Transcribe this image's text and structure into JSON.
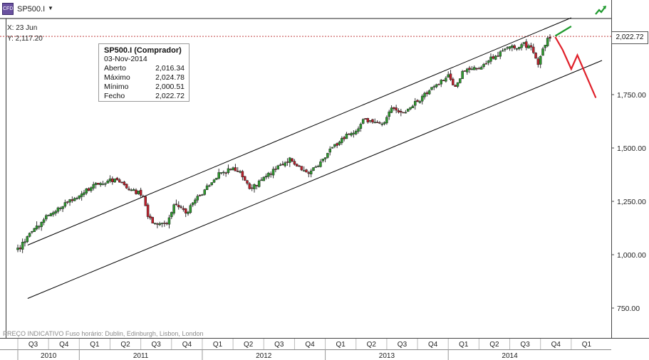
{
  "toolbar": {
    "symbol": "SP500.I",
    "symbol_icon": "cfd-icon"
  },
  "crosshair": {
    "x_label": "X: 23 Jun",
    "y_label": "Y: 2,117.20"
  },
  "tooltip": {
    "title": "SP500.I (Comprador)",
    "date": "03-Nov-2014",
    "rows": [
      {
        "label": "Aberto",
        "value": "2,016.34"
      },
      {
        "label": "Máximo",
        "value": "2,024.78"
      },
      {
        "label": "Mínimo",
        "value": "2,000.51"
      },
      {
        "label": "Fecho",
        "value": "2,022.72"
      }
    ]
  },
  "last_price": "2,022.72",
  "footer_note": "PREÇO INDICATIVO   Fuso horário: Dublin, Edinburgh, Lisbon, London",
  "colors": {
    "up": "#2e9b2e",
    "down": "#c0202c",
    "channel": "#000000",
    "projection_down": "#e0202a",
    "projection_up": "#1f9a2e",
    "crosshair": "#c04040"
  },
  "chart_data": {
    "type": "candlestick",
    "ylim": [
      590,
      2090
    ],
    "y_ticks": [
      750,
      1000,
      1250,
      1500,
      1750,
      2000
    ],
    "y_tick_labels": [
      "750.00",
      "1,000.00",
      "1,250.00",
      "1,500.00",
      "1,750.00",
      ""
    ],
    "x_range": [
      2010.5,
      2015.25
    ],
    "quarters": [
      {
        "label": "Q3",
        "t": 2010.5
      },
      {
        "label": "Q4",
        "t": 2010.75
      },
      {
        "label": "Q1",
        "t": 2011.0
      },
      {
        "label": "Q2",
        "t": 2011.25
      },
      {
        "label": "Q3",
        "t": 2011.5
      },
      {
        "label": "Q4",
        "t": 2011.75
      },
      {
        "label": "Q1",
        "t": 2012.0
      },
      {
        "label": "Q2",
        "t": 2012.25
      },
      {
        "label": "Q3",
        "t": 2012.5
      },
      {
        "label": "Q4",
        "t": 2012.75
      },
      {
        "label": "Q1",
        "t": 2013.0
      },
      {
        "label": "Q2",
        "t": 2013.25
      },
      {
        "label": "Q3",
        "t": 2013.5
      },
      {
        "label": "Q4",
        "t": 2013.75
      },
      {
        "label": "Q1",
        "t": 2014.0
      },
      {
        "label": "Q2",
        "t": 2014.25
      },
      {
        "label": "Q3",
        "t": 2014.5
      },
      {
        "label": "Q4",
        "t": 2014.75
      },
      {
        "label": "Q1",
        "t": 2015.0
      }
    ],
    "years": [
      {
        "label": "2010",
        "t": 2010.5,
        "end": 2011.0
      },
      {
        "label": "2011",
        "t": 2011.0,
        "end": 2012.0
      },
      {
        "label": "2012",
        "t": 2012.0,
        "end": 2013.0
      },
      {
        "label": "2013",
        "t": 2013.0,
        "end": 2014.0
      },
      {
        "label": "2014",
        "t": 2014.0,
        "end": 2015.0
      }
    ],
    "price_path": [
      [
        2010.5,
        1020
      ],
      [
        2010.58,
        1090
      ],
      [
        2010.67,
        1140
      ],
      [
        2010.75,
        1185
      ],
      [
        2010.85,
        1230
      ],
      [
        2010.96,
        1260
      ],
      [
        2011.05,
        1300
      ],
      [
        2011.13,
        1330
      ],
      [
        2011.21,
        1340
      ],
      [
        2011.3,
        1350
      ],
      [
        2011.38,
        1320
      ],
      [
        2011.46,
        1295
      ],
      [
        2011.52,
        1280
      ],
      [
        2011.56,
        1180
      ],
      [
        2011.6,
        1150
      ],
      [
        2011.66,
        1140
      ],
      [
        2011.72,
        1150
      ],
      [
        2011.77,
        1240
      ],
      [
        2011.83,
        1225
      ],
      [
        2011.88,
        1200
      ],
      [
        2011.94,
        1260
      ],
      [
        2012.0,
        1280
      ],
      [
        2012.08,
        1345
      ],
      [
        2012.16,
        1390
      ],
      [
        2012.25,
        1405
      ],
      [
        2012.32,
        1380
      ],
      [
        2012.38,
        1310
      ],
      [
        2012.44,
        1330
      ],
      [
        2012.5,
        1365
      ],
      [
        2012.56,
        1385
      ],
      [
        2012.63,
        1420
      ],
      [
        2012.7,
        1445
      ],
      [
        2012.75,
        1430
      ],
      [
        2012.81,
        1395
      ],
      [
        2012.87,
        1385
      ],
      [
        2012.94,
        1420
      ],
      [
        2013.0,
        1465
      ],
      [
        2013.08,
        1510
      ],
      [
        2013.17,
        1560
      ],
      [
        2013.25,
        1585
      ],
      [
        2013.33,
        1640
      ],
      [
        2013.41,
        1615
      ],
      [
        2013.47,
        1610
      ],
      [
        2013.54,
        1680
      ],
      [
        2013.63,
        1660
      ],
      [
        2013.7,
        1690
      ],
      [
        2013.77,
        1730
      ],
      [
        2013.84,
        1770
      ],
      [
        2013.92,
        1800
      ],
      [
        2014.0,
        1840
      ],
      [
        2014.05,
        1780
      ],
      [
        2014.12,
        1860
      ],
      [
        2014.2,
        1870
      ],
      [
        2014.28,
        1880
      ],
      [
        2014.35,
        1920
      ],
      [
        2014.43,
        1950
      ],
      [
        2014.5,
        1970
      ],
      [
        2014.56,
        1960
      ],
      [
        2014.62,
        1990
      ],
      [
        2014.69,
        1960
      ],
      [
        2014.73,
        1880
      ],
      [
        2014.77,
        1960
      ],
      [
        2014.8,
        2010
      ],
      [
        2014.84,
        2022
      ]
    ],
    "last_close": 2022.72,
    "channel_upper": [
      [
        2010.58,
        1045
      ],
      [
        2015.0,
        2110
      ]
    ],
    "channel_lower": [
      [
        2010.58,
        795
      ],
      [
        2015.25,
        1910
      ]
    ],
    "projection_bearish": [
      [
        2014.87,
        2020
      ],
      [
        2014.93,
        1960
      ],
      [
        2015.0,
        1870
      ],
      [
        2015.05,
        1935
      ],
      [
        2015.2,
        1735
      ]
    ],
    "projection_bullish": [
      [
        2014.87,
        2025
      ],
      [
        2015.0,
        2070
      ]
    ]
  }
}
